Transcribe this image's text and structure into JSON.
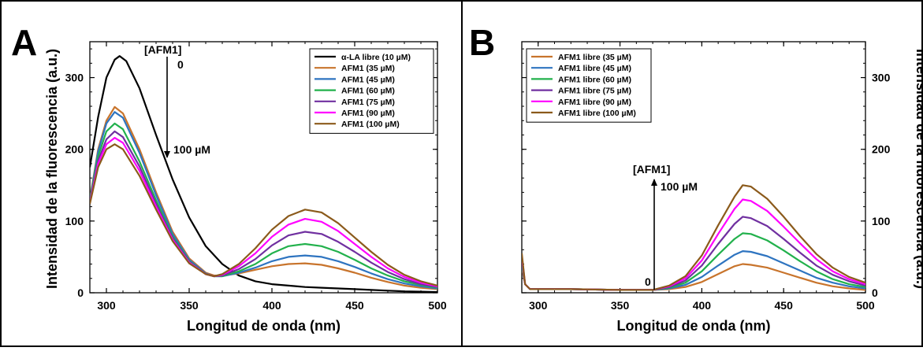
{
  "chart_data": [
    {
      "panel": "A",
      "type": "line",
      "xlabel": "Longitud de onda (nm)",
      "ylabel": "Intensidad de la fluorescencia (a.u.)",
      "xlim": [
        290,
        500
      ],
      "ylim": [
        0,
        350
      ],
      "xticks": [
        300,
        350,
        400,
        450,
        500
      ],
      "yticks": [
        0,
        100,
        200,
        300
      ],
      "y_axis_side": "left",
      "legend_position": "top-right",
      "annotations": [
        "[AFM1]",
        "0",
        "100 µM"
      ],
      "arrow_direction": "down",
      "series": [
        {
          "name": "α-LA libre (10 µM)",
          "color": "#000000",
          "x": [
            290,
            295,
            300,
            305,
            308,
            312,
            320,
            330,
            340,
            350,
            360,
            370,
            380,
            390,
            400,
            410,
            420,
            430,
            440,
            450,
            460,
            470,
            480,
            490,
            500
          ],
          "y": [
            175,
            245,
            300,
            325,
            330,
            323,
            285,
            220,
            158,
            105,
            65,
            40,
            24,
            16,
            12,
            10,
            8,
            7,
            6,
            5,
            4,
            3,
            2,
            1.5,
            1
          ]
        },
        {
          "name": "AFM1 (35 µM)",
          "color": "#c8742c",
          "x": [
            290,
            295,
            300,
            305,
            310,
            320,
            330,
            340,
            350,
            360,
            365,
            370,
            380,
            390,
            400,
            410,
            420,
            430,
            440,
            450,
            460,
            470,
            480,
            490,
            500
          ],
          "y": [
            130,
            200,
            240,
            259,
            250,
            200,
            140,
            85,
            48,
            28,
            24,
            24,
            27,
            32,
            37,
            40,
            41,
            39,
            34,
            28,
            21,
            15,
            10,
            7,
            5
          ]
        },
        {
          "name": "AFM1 (45 µM)",
          "color": "#2e74c0",
          "x": [
            290,
            295,
            300,
            305,
            310,
            320,
            330,
            340,
            350,
            360,
            365,
            370,
            380,
            390,
            400,
            410,
            420,
            430,
            440,
            450,
            460,
            470,
            480,
            490,
            500
          ],
          "y": [
            128,
            197,
            236,
            252,
            244,
            195,
            136,
            82,
            46,
            27,
            23,
            23,
            28,
            35,
            44,
            50,
            52,
            50,
            44,
            36,
            27,
            19,
            13,
            9,
            6
          ]
        },
        {
          "name": "AFM1 (60 µM)",
          "color": "#22b14c",
          "x": [
            290,
            295,
            300,
            305,
            310,
            320,
            330,
            340,
            350,
            360,
            365,
            370,
            380,
            390,
            400,
            410,
            420,
            430,
            440,
            450,
            460,
            470,
            480,
            490,
            500
          ],
          "y": [
            127,
            190,
            225,
            236,
            228,
            183,
            129,
            78,
            44,
            26,
            23,
            23,
            30,
            40,
            55,
            65,
            68,
            65,
            57,
            46,
            34,
            24,
            16,
            11,
            7
          ]
        },
        {
          "name": "AFM1 (75 µM)",
          "color": "#7030a0",
          "x": [
            290,
            295,
            300,
            305,
            310,
            320,
            330,
            340,
            350,
            360,
            365,
            370,
            380,
            390,
            400,
            410,
            420,
            430,
            440,
            450,
            460,
            470,
            480,
            490,
            500
          ],
          "y": [
            126,
            184,
            214,
            225,
            217,
            176,
            124,
            76,
            43,
            26,
            23,
            24,
            33,
            47,
            66,
            80,
            85,
            82,
            71,
            57,
            42,
            29,
            19,
            12,
            8
          ]
        },
        {
          "name": "AFM1 (90 µM)",
          "color": "#ff00ff",
          "x": [
            290,
            295,
            300,
            305,
            310,
            320,
            330,
            340,
            350,
            360,
            365,
            370,
            380,
            390,
            400,
            410,
            420,
            430,
            440,
            450,
            460,
            470,
            480,
            490,
            500
          ],
          "y": [
            125,
            180,
            207,
            216,
            209,
            170,
            120,
            74,
            42,
            26,
            23,
            25,
            37,
            55,
            78,
            95,
            103,
            99,
            86,
            68,
            50,
            34,
            22,
            14,
            9
          ]
        },
        {
          "name": "AFM1 (100 µM)",
          "color": "#8b5a1b",
          "x": [
            290,
            295,
            300,
            305,
            310,
            320,
            330,
            340,
            350,
            360,
            365,
            370,
            380,
            390,
            400,
            410,
            420,
            430,
            440,
            450,
            460,
            470,
            480,
            490,
            500
          ],
          "y": [
            124,
            175,
            200,
            207,
            200,
            163,
            116,
            72,
            41,
            26,
            23,
            26,
            40,
            62,
            88,
            107,
            116,
            112,
            97,
            77,
            57,
            39,
            25,
            16,
            10
          ]
        }
      ]
    },
    {
      "panel": "B",
      "type": "line",
      "xlabel": "Longitud de onda (nm)",
      "ylabel": "Intensidad de la fluorescencia (a.u.)",
      "xlim": [
        290,
        500
      ],
      "ylim": [
        0,
        350
      ],
      "xticks": [
        300,
        350,
        400,
        450,
        500
      ],
      "yticks": [
        0,
        100,
        200,
        300
      ],
      "y_axis_side": "right",
      "legend_position": "top-left",
      "annotations": [
        "[AFM1]",
        "100 µM",
        "0"
      ],
      "arrow_direction": "up",
      "series": [
        {
          "name": "AFM1 libre (35 µM)",
          "color": "#c8742c",
          "x": [
            290,
            292,
            295,
            300,
            320,
            350,
            370,
            380,
            390,
            400,
            410,
            420,
            425,
            430,
            440,
            450,
            460,
            470,
            480,
            490,
            500
          ],
          "y": [
            35,
            12,
            5,
            5,
            5,
            4,
            4,
            5,
            8,
            15,
            26,
            37,
            40,
            39,
            35,
            28,
            21,
            14,
            9,
            6,
            4
          ]
        },
        {
          "name": "AFM1 libre (45 µM)",
          "color": "#2e74c0",
          "x": [
            290,
            292,
            295,
            300,
            320,
            350,
            370,
            380,
            390,
            400,
            410,
            420,
            425,
            430,
            440,
            450,
            460,
            470,
            480,
            490,
            500
          ],
          "y": [
            40,
            12,
            5,
            5,
            5,
            4,
            4,
            6,
            11,
            22,
            38,
            53,
            58,
            57,
            51,
            41,
            31,
            21,
            14,
            9,
            6
          ]
        },
        {
          "name": "AFM1 libre (60 µM)",
          "color": "#22b14c",
          "x": [
            290,
            292,
            295,
            300,
            320,
            350,
            370,
            380,
            390,
            400,
            410,
            420,
            425,
            430,
            440,
            450,
            460,
            470,
            480,
            490,
            500
          ],
          "y": [
            44,
            12,
            5,
            5,
            5,
            4,
            4,
            7,
            14,
            30,
            53,
            75,
            83,
            82,
            73,
            59,
            44,
            30,
            19,
            12,
            8
          ]
        },
        {
          "name": "AFM1 libre (75 µM)",
          "color": "#7030a0",
          "x": [
            290,
            292,
            295,
            300,
            320,
            350,
            370,
            380,
            390,
            400,
            410,
            420,
            425,
            430,
            440,
            450,
            460,
            470,
            480,
            490,
            500
          ],
          "y": [
            48,
            12,
            5,
            5,
            5,
            4,
            4,
            8,
            17,
            38,
            68,
            96,
            106,
            104,
            93,
            75,
            56,
            38,
            25,
            16,
            10
          ]
        },
        {
          "name": "AFM1 libre (90 µM)",
          "color": "#ff00ff",
          "x": [
            290,
            292,
            295,
            300,
            320,
            350,
            370,
            380,
            390,
            400,
            410,
            420,
            425,
            430,
            440,
            450,
            460,
            470,
            480,
            490,
            500
          ],
          "y": [
            52,
            12,
            5,
            5,
            5,
            4,
            4,
            9,
            20,
            45,
            82,
            117,
            130,
            128,
            114,
            92,
            69,
            47,
            30,
            19,
            12
          ]
        },
        {
          "name": "AFM1 libre (100 µM)",
          "color": "#8b5a1b",
          "x": [
            290,
            292,
            295,
            300,
            320,
            350,
            370,
            380,
            390,
            400,
            410,
            420,
            425,
            430,
            440,
            450,
            460,
            470,
            480,
            490,
            500
          ],
          "y": [
            55,
            12,
            5,
            5,
            5,
            4,
            4,
            10,
            23,
            52,
            94,
            134,
            150,
            148,
            131,
            106,
            79,
            54,
            35,
            22,
            14
          ]
        }
      ]
    }
  ]
}
